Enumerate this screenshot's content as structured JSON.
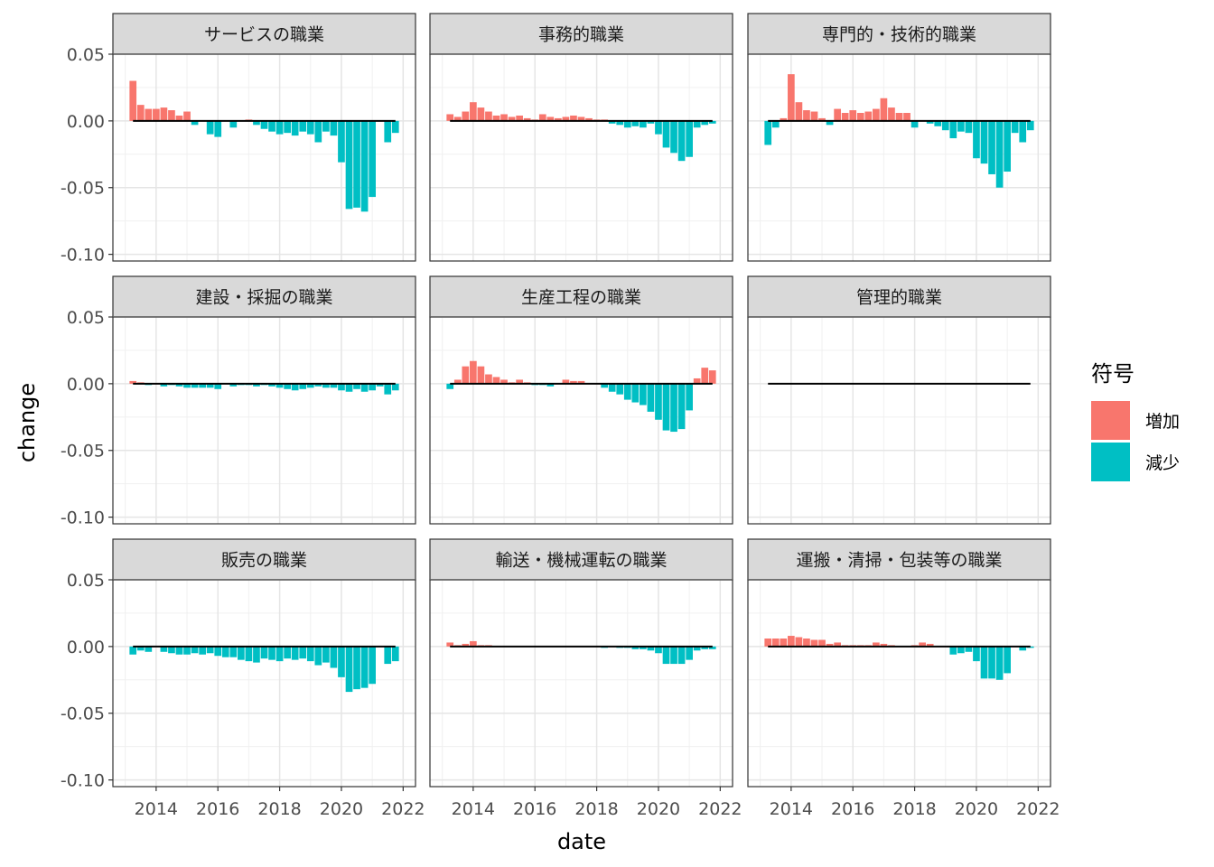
{
  "chart_data": {
    "type": "bar",
    "layout": "facet_wrap",
    "ncol": 3,
    "xlabel": "date",
    "ylabel": "change",
    "x_ticks": [
      2014,
      2016,
      2018,
      2020,
      2022
    ],
    "y_ticks": [
      0.05,
      0.0,
      -0.05,
      -0.1
    ],
    "y_tick_labels": [
      "0.05",
      "0.00",
      "-0.05",
      "-0.10"
    ],
    "xlim": [
      2012.6,
      2022.4
    ],
    "ylim": [
      -0.105,
      0.05
    ],
    "grid": true,
    "legend": {
      "title": "符号",
      "placement": "right",
      "items": [
        {
          "label": "増加",
          "color": "#F8766D"
        },
        {
          "label": "減少",
          "color": "#00BFC4"
        }
      ]
    },
    "dates": [
      2013.25,
      2013.5,
      2013.75,
      2014.0,
      2014.25,
      2014.5,
      2014.75,
      2015.0,
      2015.25,
      2015.5,
      2015.75,
      2016.0,
      2016.25,
      2016.5,
      2016.75,
      2017.0,
      2017.25,
      2017.5,
      2017.75,
      2018.0,
      2018.25,
      2018.5,
      2018.75,
      2019.0,
      2019.25,
      2019.5,
      2019.75,
      2020.0,
      2020.25,
      2020.5,
      2020.75,
      2021.0,
      2021.25,
      2021.5,
      2021.75
    ],
    "facets": [
      {
        "title": "サービスの職業",
        "values": [
          0.03,
          0.012,
          0.009,
          0.009,
          0.01,
          0.008,
          0.004,
          0.007,
          -0.003,
          0.0,
          -0.01,
          -0.012,
          0.0,
          -0.005,
          0.0,
          0.001,
          -0.003,
          -0.006,
          -0.008,
          -0.01,
          -0.009,
          -0.011,
          -0.008,
          -0.01,
          -0.016,
          -0.008,
          -0.011,
          -0.031,
          -0.066,
          -0.065,
          -0.068,
          -0.057,
          0.0,
          -0.016,
          -0.009
        ]
      },
      {
        "title": "事務的職業",
        "values": [
          0.005,
          0.003,
          0.007,
          0.014,
          0.01,
          0.007,
          0.004,
          0.005,
          0.003,
          0.004,
          0.002,
          0.001,
          0.005,
          0.003,
          0.002,
          0.003,
          0.004,
          0.003,
          0.002,
          0.001,
          0.001,
          -0.002,
          -0.003,
          -0.005,
          -0.004,
          -0.005,
          -0.002,
          -0.01,
          -0.02,
          -0.024,
          -0.03,
          -0.027,
          -0.005,
          -0.003,
          -0.002
        ]
      },
      {
        "title": "専門的・技術的職業",
        "values": [
          -0.018,
          -0.005,
          0.002,
          0.035,
          0.014,
          0.008,
          0.007,
          0.002,
          -0.003,
          0.009,
          0.006,
          0.008,
          0.006,
          0.007,
          0.009,
          0.017,
          0.01,
          0.006,
          0.006,
          -0.005,
          0.0,
          -0.002,
          -0.004,
          -0.007,
          -0.013,
          -0.008,
          -0.009,
          -0.028,
          -0.032,
          -0.04,
          -0.05,
          -0.038,
          -0.009,
          -0.016,
          -0.007
        ]
      },
      {
        "title": "建設・採掘の職業",
        "values": [
          0.002,
          0.001,
          -0.001,
          0.0,
          -0.002,
          -0.001,
          -0.002,
          -0.003,
          -0.003,
          -0.003,
          -0.003,
          -0.004,
          0.0,
          -0.002,
          -0.001,
          -0.001,
          -0.002,
          -0.001,
          -0.002,
          -0.003,
          -0.004,
          -0.005,
          -0.004,
          -0.003,
          -0.002,
          -0.003,
          -0.003,
          -0.005,
          -0.006,
          -0.004,
          -0.006,
          -0.005,
          -0.002,
          -0.008,
          -0.005
        ]
      },
      {
        "title": "生産工程の職業",
        "values": [
          -0.004,
          0.003,
          0.013,
          0.017,
          0.013,
          0.007,
          0.005,
          0.003,
          0.001,
          0.003,
          0.001,
          -0.001,
          -0.001,
          -0.002,
          0.0,
          0.003,
          0.002,
          0.002,
          0.0,
          0.0,
          -0.003,
          -0.006,
          -0.008,
          -0.012,
          -0.014,
          -0.016,
          -0.021,
          -0.027,
          -0.035,
          -0.036,
          -0.034,
          -0.02,
          0.004,
          0.012,
          0.01
        ]
      },
      {
        "title": "管理的職業",
        "values": [
          0.0,
          0.0,
          0.0,
          0.0,
          0.0,
          0.0,
          0.0,
          0.0,
          0.0,
          0.0,
          0.0,
          0.0,
          0.0,
          0.0,
          0.0,
          0.0,
          0.0,
          0.0,
          0.0,
          0.0,
          0.0,
          0.0,
          0.0,
          0.0,
          0.0,
          0.0,
          0.0,
          0.0,
          0.0,
          0.0,
          0.0,
          0.0,
          0.0,
          0.0,
          0.0
        ]
      },
      {
        "title": "販売の職業",
        "values": [
          -0.006,
          -0.003,
          -0.004,
          0.0,
          -0.004,
          -0.005,
          -0.006,
          -0.006,
          -0.005,
          -0.006,
          -0.005,
          -0.007,
          -0.008,
          -0.008,
          -0.01,
          -0.011,
          -0.012,
          -0.009,
          -0.01,
          -0.011,
          -0.009,
          -0.01,
          -0.009,
          -0.011,
          -0.014,
          -0.012,
          -0.016,
          -0.023,
          -0.034,
          -0.032,
          -0.031,
          -0.028,
          0.0,
          -0.013,
          -0.011
        ]
      },
      {
        "title": "輸送・機械運転の職業",
        "values": [
          0.003,
          0.001,
          0.002,
          0.004,
          0.001,
          0.001,
          0.0,
          0.0,
          0.0,
          0.0,
          0.0,
          0.0,
          0.0,
          0.0,
          0.0,
          0.0,
          0.0,
          0.0,
          0.0,
          0.0,
          -0.001,
          0.0,
          -0.001,
          -0.001,
          -0.002,
          -0.002,
          -0.003,
          -0.005,
          -0.013,
          -0.013,
          -0.013,
          -0.01,
          -0.003,
          -0.002,
          -0.002
        ]
      },
      {
        "title": "運搬・清掃・包装等の職業",
        "values": [
          0.006,
          0.006,
          0.006,
          0.008,
          0.007,
          0.006,
          0.005,
          0.005,
          0.002,
          0.003,
          0.001,
          0.001,
          0.001,
          0.001,
          0.003,
          0.002,
          0.001,
          0.0,
          0.0,
          0.001,
          0.003,
          0.002,
          0.0,
          0.0,
          -0.006,
          -0.005,
          -0.004,
          -0.011,
          -0.024,
          -0.024,
          -0.025,
          -0.02,
          0.0,
          -0.003,
          -0.001
        ]
      }
    ]
  }
}
